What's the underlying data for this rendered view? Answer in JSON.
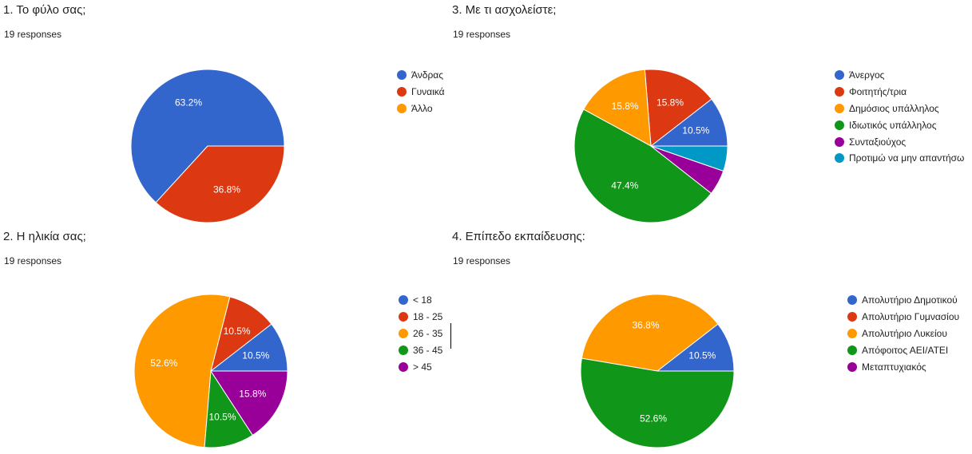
{
  "chart_data": [
    {
      "type": "pie",
      "title": "1. Το φύλο σας;",
      "subtitle": "19 responses",
      "categories": [
        "Άνδρας",
        "Γυναικά",
        "Άλλο"
      ],
      "values": [
        63.2,
        36.8,
        0
      ],
      "labels": [
        "63.2%",
        "36.8%",
        ""
      ],
      "colors": [
        "#3366cc",
        "#dc3912",
        "#ff9900"
      ],
      "legend": "right"
    },
    {
      "type": "pie",
      "title": "2. Η ηλικία σας;",
      "subtitle": "19 responses",
      "categories": [
        "< 18",
        "18 - 25",
        "26 - 35",
        "36 - 45",
        "> 45"
      ],
      "values": [
        10.5,
        10.5,
        52.6,
        10.5,
        15.8
      ],
      "labels": [
        "10.5%",
        "10.5%",
        "52.6%",
        "10.5%",
        "15.8%"
      ],
      "colors": [
        "#3366cc",
        "#dc3912",
        "#ff9900",
        "#109618",
        "#990099"
      ],
      "legend": "right"
    },
    {
      "type": "pie",
      "title": "3. Με τι ασχολείστε;",
      "subtitle": "19 responses",
      "categories": [
        "Άνεργος",
        "Φοιτητής/τρια",
        "Δημόσιος υπάλληλος",
        "Ιδιωτικός υπάλληλος",
        "Συνταξιούχος",
        "Προτιμώ να μην απαντήσω"
      ],
      "values": [
        10.5,
        15.8,
        15.8,
        47.4,
        5.3,
        5.3
      ],
      "labels": [
        "10.5%",
        "15.8%",
        "15.8%",
        "47.4%",
        "",
        ""
      ],
      "colors": [
        "#3366cc",
        "#dc3912",
        "#ff9900",
        "#109618",
        "#990099",
        "#0099c6"
      ],
      "legend": "right"
    },
    {
      "type": "pie",
      "title": "4. Επίπεδο εκπαίδευσης:",
      "subtitle": "19 responses",
      "categories": [
        "Απολυτήριο Δημοτικού",
        "Απολυτήριο Γυμνασίου",
        "Απολυτήριο Λυκείου",
        "Απόφοιτος ΑΕΙ/ΑΤΕΙ",
        "Μεταπτυχιακός"
      ],
      "values": [
        10.5,
        0,
        36.8,
        52.6,
        0
      ],
      "labels": [
        "10.5%",
        "",
        "36.8%",
        "52.6%",
        ""
      ],
      "colors": [
        "#3366cc",
        "#dc3912",
        "#ff9900",
        "#109618",
        "#990099"
      ],
      "legend": "right"
    }
  ]
}
